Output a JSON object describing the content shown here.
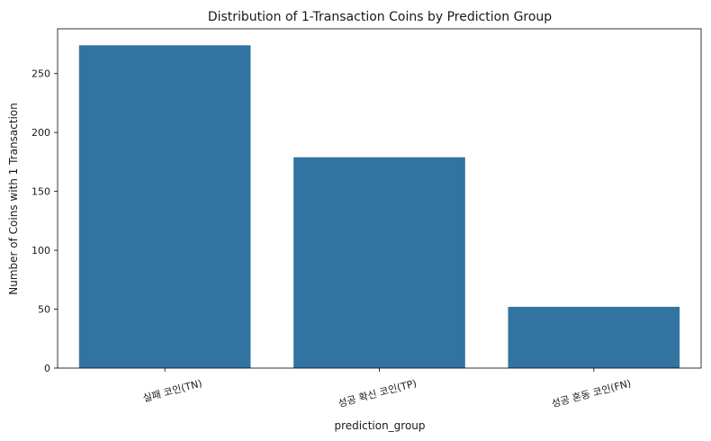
{
  "chart_data": {
    "type": "bar",
    "title": "Distribution of 1-Transaction Coins by Prediction Group",
    "xlabel": "prediction_group",
    "ylabel": "Number of Coins with 1 Transaction",
    "categories": [
      "실패 코인(TN)",
      "성공 확신 코인(TP)",
      "성공 혼동 코인(FN)"
    ],
    "values": [
      274,
      179,
      52
    ],
    "ylim": [
      0,
      288
    ],
    "yticks": [
      0,
      50,
      100,
      150,
      200,
      250
    ],
    "bar_color": "#3274a1",
    "grid": false,
    "legend": "none"
  }
}
